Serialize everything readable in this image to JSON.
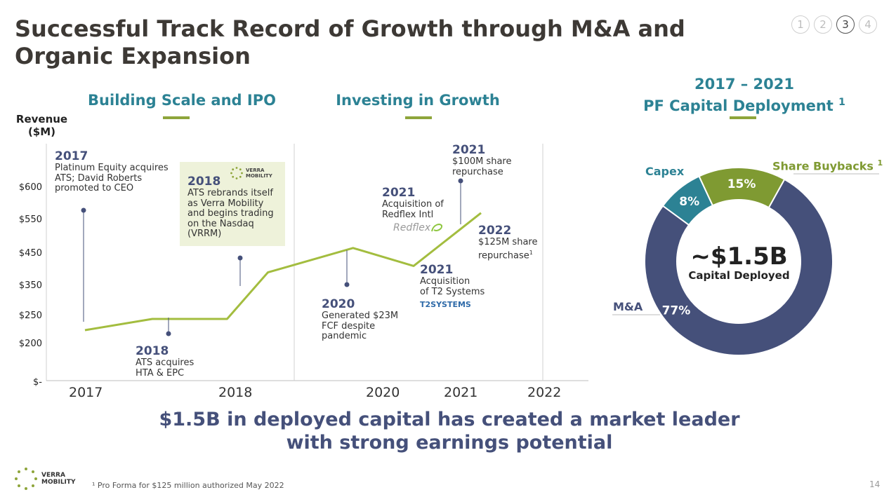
{
  "title": "Successful Track Record of Growth through M&A and Organic Expansion",
  "pagination": [
    "1",
    "2",
    "3",
    "4"
  ],
  "sections": {
    "left": "Building Scale and IPO",
    "middle": "Investing in Growth",
    "right_line1": "2017 – 2021",
    "right_line2": "PF Capital Deployment",
    "right_sup": "1"
  },
  "chart_data": [
    {
      "type": "line",
      "ylabel": "Revenue ($M)",
      "y_tick_labels": [
        "$600",
        "$550",
        "$450",
        "$350",
        "$250",
        "$200",
        "$-"
      ],
      "x_tick_labels": [
        "2017",
        "2018",
        "2020",
        "2021",
        "2022"
      ],
      "x": [
        2017.0,
        2017.45,
        2017.95,
        2018.45,
        2019.6,
        2020.4,
        2021.25
      ],
      "series": [
        {
          "values": [
            225,
            245,
            245,
            390,
            465,
            410,
            560
          ]
        }
      ],
      "annotations": [
        {
          "year": "2017",
          "text": "Platinum Equity acquires ATS; David Roberts promoted to CEO"
        },
        {
          "year": "2018",
          "text": "ATS acquires HTA & EPC"
        },
        {
          "year": "2018",
          "text": "ATS rebrands itself as Verra Mobility and begins trading on the Nasdaq (VRRM)"
        },
        {
          "year": "2020",
          "text": "Generated $23M FCF despite pandemic"
        },
        {
          "year": "2021",
          "text": "Acquisition of Redflex Intl"
        },
        {
          "year": "2021",
          "text": "Acquisition of T2 Systems"
        },
        {
          "year": "2021",
          "text": "$100M share repurchase"
        },
        {
          "year": "2022",
          "text": "$125M share repurchase",
          "sup": "1"
        }
      ]
    },
    {
      "type": "pie",
      "title": "2017 – 2021 PF Capital Deployment",
      "slices": [
        {
          "label": "M&A",
          "value": 77,
          "display": "77%",
          "color": "#45507a"
        },
        {
          "label": "Capex",
          "value": 8,
          "display": "8%",
          "color": "#2c8294"
        },
        {
          "label": "Share Buybacks",
          "value": 15,
          "display": "15%",
          "color": "#7f9a32"
        }
      ],
      "center_value": "~$1.5B",
      "center_label": "Capital Deployed"
    }
  ],
  "events": {
    "e2017": {
      "year": "2017",
      "l1": "Platinum Equity acquires",
      "l2": "ATS; David Roberts",
      "l3": "promoted to CEO"
    },
    "e2018a": {
      "year": "2018",
      "l1": "ATS acquires",
      "l2": "HTA & EPC"
    },
    "e2018b": {
      "year": "2018",
      "l1": "ATS rebrands itself",
      "l2": "as Verra Mobility",
      "l3": "and begins trading",
      "l4": "on the Nasdaq",
      "l5": "(VRRM)"
    },
    "e2020": {
      "year": "2020",
      "l1": "Generated $23M",
      "l2": "FCF despite",
      "l3": "pandemic"
    },
    "e2021a": {
      "year": "2021",
      "l1": "Acquisition of",
      "l2": "Redflex Intl"
    },
    "e2021b": {
      "year": "2021",
      "l1": "Acquisition",
      "l2": "of T2 Systems"
    },
    "e2021c": {
      "year": "2021",
      "l1": "$100M share",
      "l2": "repurchase"
    },
    "e2022": {
      "year": "2022",
      "l1": "$125M share",
      "l2": "repurchase",
      "sup": "1"
    }
  },
  "logos": {
    "redflex": "Redflex",
    "t2": "T2SYSTEMS",
    "verra_box_l1": "VERRA",
    "verra_box_l2": "MOBILITY",
    "verra_footer_l1": "VERRA",
    "verra_footer_l2": "MOBILITY"
  },
  "donut_labels": {
    "capex": "Capex",
    "buybacks": "Share Buybacks",
    "buybacks_sup": "1",
    "ma": "M&A"
  },
  "tagline_l1": "$1.5B in deployed capital has created a market leader",
  "tagline_l2": "with strong earnings potential",
  "footnote": "¹ Pro Forma for $125 million authorized May 2022",
  "page_number": "14",
  "colors": {
    "teal": "#2c8294",
    "navy": "#45507a",
    "green": "#7f9a32",
    "line": "#a3bd3f"
  }
}
